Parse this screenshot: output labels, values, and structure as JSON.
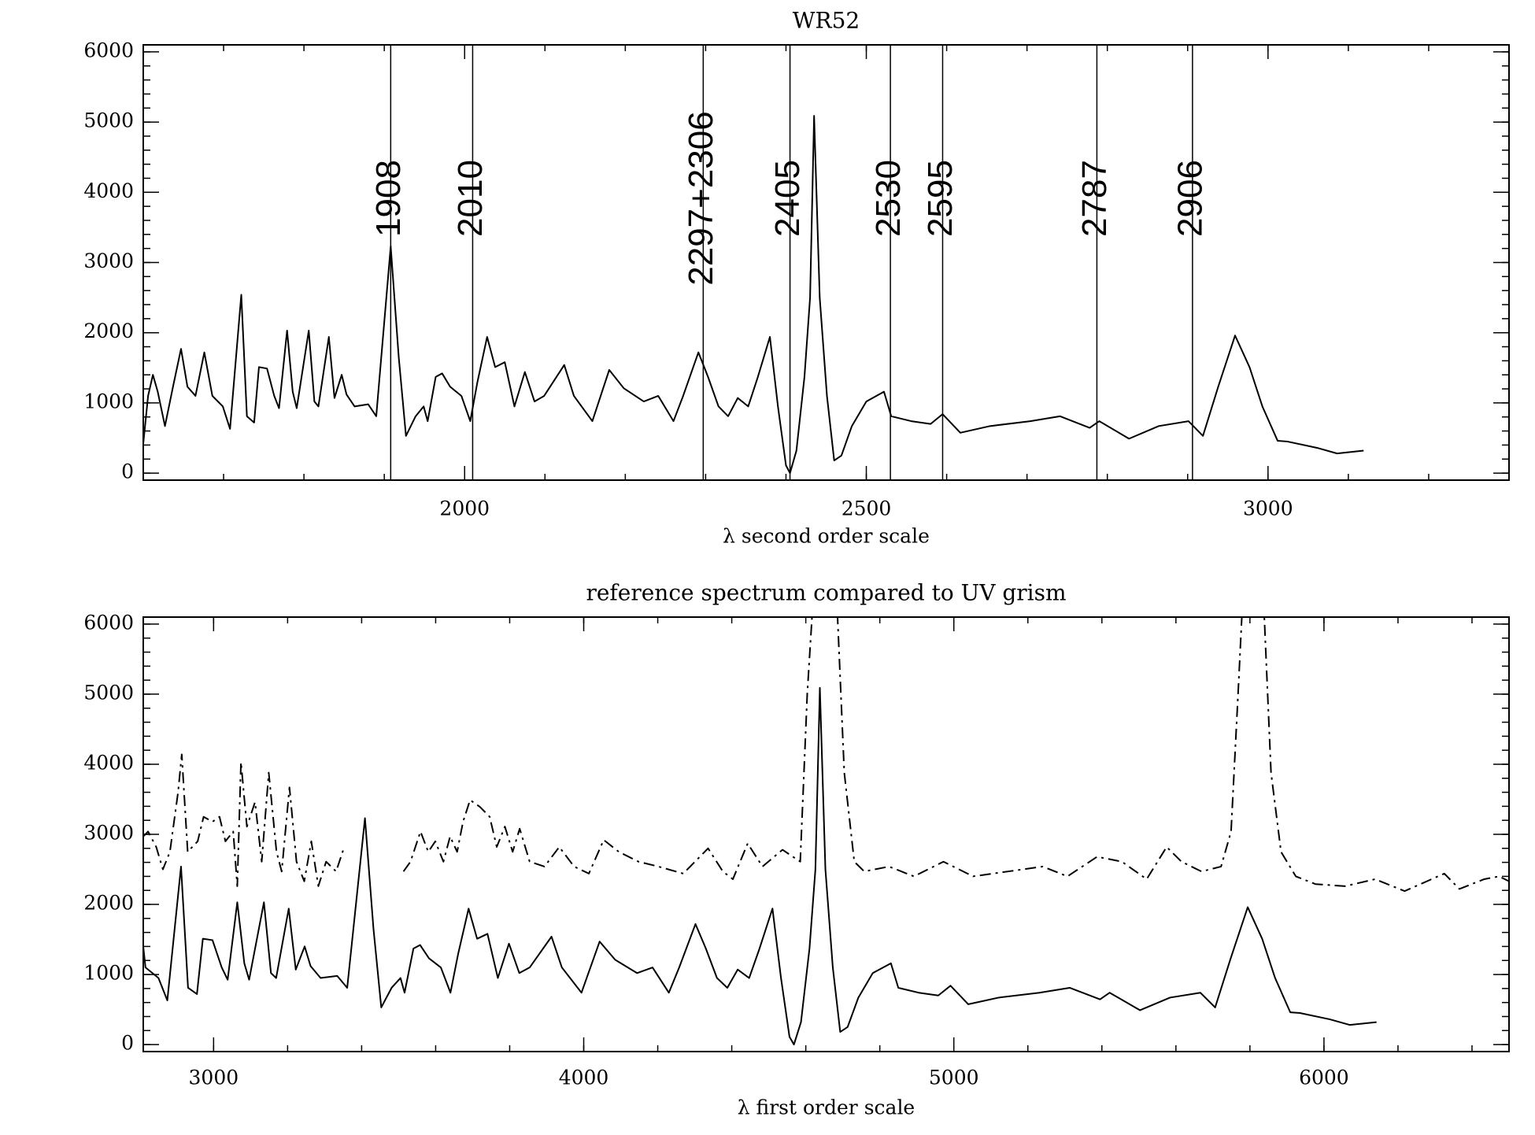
{
  "chart_data": [
    {
      "type": "line",
      "title": "WR52",
      "x_label": "λ second order scale",
      "xlim": [
        1600,
        3300
      ],
      "ylim": [
        -100,
        6100
      ],
      "xticks": [
        2000,
        2500,
        3000
      ],
      "yticks": [
        0,
        1000,
        2000,
        3000,
        4000,
        5000,
        6000
      ],
      "vlines": [
        1908,
        2010,
        {
          "value": 2297,
          "label": "2297+2306"
        },
        2405,
        2530,
        2595,
        2787,
        2906
      ],
      "series": [
        {
          "color": "#000000",
          "line_style": "solid",
          "x": [
            1600,
            1606,
            1612,
            1618,
            1627,
            1637,
            1647,
            1655,
            1665,
            1676,
            1686,
            1699,
            1708,
            1722,
            1729,
            1738,
            1744,
            1754,
            1763,
            1769,
            1779,
            1786,
            1791,
            1806,
            1813,
            1818,
            1831,
            1838,
            1847,
            1853,
            1863,
            1880,
            1890,
            1908,
            1918,
            1927,
            1939,
            1949,
            1954,
            1964,
            1972,
            1982,
            1996,
            2007,
            2016,
            2028,
            2038,
            2050,
            2062,
            2075,
            2087,
            2099,
            2124,
            2136,
            2159,
            2180,
            2198,
            2223,
            2241,
            2260,
            2272,
            2291,
            2303,
            2316,
            2328,
            2340,
            2353,
            2365,
            2380,
            2390,
            2400,
            2405,
            2413,
            2423,
            2430,
            2435,
            2442,
            2451,
            2460,
            2469,
            2482,
            2500,
            2522,
            2531,
            2556,
            2580,
            2595,
            2617,
            2654,
            2704,
            2741,
            2778,
            2790,
            2827,
            2864,
            2901,
            2919,
            2938,
            2959,
            2977,
            2993,
            3012,
            3024,
            3061,
            3086,
            3119
          ],
          "values": [
            420,
            1100,
            1400,
            1160,
            670,
            1230,
            1770,
            1230,
            1100,
            1720,
            1100,
            950,
            630,
            2540,
            810,
            720,
            1510,
            1490,
            1100,
            925,
            2030,
            1160,
            925,
            2030,
            1020,
            950,
            1940,
            1070,
            1400,
            1120,
            950,
            980,
            810,
            3230,
            1650,
            530,
            810,
            950,
            740,
            1370,
            1420,
            1230,
            1100,
            740,
            1300,
            1940,
            1510,
            1580,
            950,
            1440,
            1020,
            1100,
            1540,
            1100,
            740,
            1470,
            1210,
            1020,
            1100,
            740,
            1100,
            1720,
            1370,
            950,
            810,
            1070,
            950,
            1370,
            1940,
            950,
            110,
            0,
            320,
            1370,
            2500,
            5090,
            2500,
            1100,
            180,
            250,
            670,
            1020,
            1160,
            810,
            740,
            700,
            840,
            575,
            670,
            740,
            810,
            645,
            740,
            490,
            670,
            740,
            530,
            1230,
            1960,
            1510,
            950,
            460,
            450,
            360,
            280,
            320
          ]
        }
      ]
    },
    {
      "type": "line",
      "title": "reference spectrum compared to UV grism",
      "x_label": "λ first order scale",
      "xlim": [
        2810,
        6500
      ],
      "ylim": [
        -100,
        6100
      ],
      "xticks": [
        3000,
        4000,
        5000,
        6000
      ],
      "yticks": [
        0,
        1000,
        2000,
        3000,
        4000,
        5000,
        6000
      ],
      "series": [
        {
          "color": "#000000",
          "line_style": "solid",
          "x": [
            2810,
            2816,
            2851,
            2875,
            2912,
            2931,
            2955,
            2971,
            2997,
            3022,
            3038,
            3064,
            3083,
            3096,
            3136,
            3155,
            3169,
            3203,
            3222,
            3246,
            3262,
            3289,
            3334,
            3361,
            3409,
            3432,
            3453,
            3481,
            3505,
            3516,
            3540,
            3558,
            3582,
            3614,
            3640,
            3661,
            3689,
            3712,
            3740,
            3768,
            3798,
            3826,
            3854,
            3913,
            3941,
            3994,
            4043,
            4085,
            4144,
            4186,
            4230,
            4258,
            4302,
            4330,
            4360,
            4388,
            4416,
            4447,
            4475,
            4510,
            4533,
            4556,
            4568,
            4587,
            4610,
            4626,
            4638,
            4653,
            4673,
            4693,
            4713,
            4742,
            4781,
            4830,
            4850,
            4905,
            4958,
            4991,
            5039,
            5121,
            5231,
            5313,
            5395,
            5421,
            5503,
            5584,
            5666,
            5706,
            5748,
            5794,
            5833,
            5868,
            5909,
            5935,
            6016,
            6070,
            6142
          ],
          "values": [
            1400,
            1100,
            950,
            630,
            2540,
            810,
            720,
            1510,
            1490,
            1100,
            925,
            2030,
            1160,
            925,
            2030,
            1020,
            950,
            1940,
            1070,
            1400,
            1120,
            950,
            980,
            810,
            3230,
            1650,
            530,
            810,
            950,
            740,
            1370,
            1420,
            1230,
            1100,
            740,
            1300,
            1940,
            1510,
            1580,
            950,
            1440,
            1020,
            1100,
            1540,
            1100,
            740,
            1470,
            1210,
            1020,
            1100,
            740,
            1100,
            1720,
            1370,
            950,
            810,
            1070,
            950,
            1370,
            1940,
            950,
            110,
            0,
            320,
            1370,
            2500,
            5090,
            2500,
            1100,
            180,
            250,
            670,
            1020,
            1160,
            810,
            740,
            700,
            840,
            575,
            670,
            740,
            810,
            645,
            740,
            490,
            670,
            740,
            530,
            1230,
            1960,
            1510,
            950,
            460,
            450,
            360,
            280,
            320
          ]
        },
        {
          "color": "#000000",
          "line_style": "dashdot",
          "x": [
            2810,
            2823,
            2845,
            2863,
            2882,
            2904,
            2914,
            2930,
            2957,
            2973,
            2997,
            3016,
            3032,
            3053,
            3064,
            3074,
            3090,
            3112,
            3130,
            3149,
            3170,
            3184,
            3205,
            3224,
            3245,
            3264,
            3283,
            3304,
            3331,
            3353,
            null,
            3513,
            3532,
            3559,
            3580,
            3599,
            3621,
            3639,
            3658,
            3674,
            3693,
            3720,
            3746,
            3765,
            3787,
            3808,
            3827,
            3854,
            3894,
            3934,
            3974,
            4014,
            4054,
            4095,
            4148,
            4202,
            4269,
            4336,
            4376,
            4403,
            4443,
            4483,
            4537,
            4585,
            4604,
            4618,
            4640,
            4665,
            4685,
            4704,
            4731,
            4758,
            4825,
            4892,
            4972,
            5052,
            5146,
            5240,
            5307,
            5387,
            5454,
            5521,
            5575,
            5615,
            5669,
            5722,
            5749,
            5768,
            5779,
            5800,
            5820,
            5838,
            5857,
            5884,
            5924,
            5977,
            6057,
            6138,
            6218,
            6325,
            6366,
            6433,
            6473,
            6500
          ],
          "values": [
            2970,
            3040,
            2820,
            2500,
            2750,
            3600,
            4140,
            2750,
            2900,
            3250,
            3180,
            3250,
            2900,
            3040,
            2260,
            4030,
            3110,
            3460,
            2610,
            3880,
            2750,
            2470,
            3670,
            2610,
            2330,
            2900,
            2260,
            2610,
            2470,
            2820,
            null,
            2470,
            2610,
            3040,
            2750,
            2900,
            2610,
            2970,
            2750,
            3180,
            3490,
            3390,
            3250,
            2820,
            3110,
            2750,
            3080,
            2610,
            2540,
            2820,
            2540,
            2440,
            2920,
            2750,
            2610,
            2540,
            2440,
            2800,
            2470,
            2360,
            2870,
            2540,
            2780,
            2610,
            5010,
            6200,
            10000,
            10000,
            6200,
            3880,
            2610,
            2470,
            2540,
            2400,
            2610,
            2400,
            2470,
            2540,
            2400,
            2680,
            2610,
            2360,
            2820,
            2610,
            2470,
            2540,
            3040,
            5010,
            6200,
            10000,
            10000,
            6200,
            3880,
            2750,
            2400,
            2290,
            2260,
            2360,
            2190,
            2440,
            2220,
            2360,
            2400,
            2330
          ]
        }
      ]
    }
  ]
}
